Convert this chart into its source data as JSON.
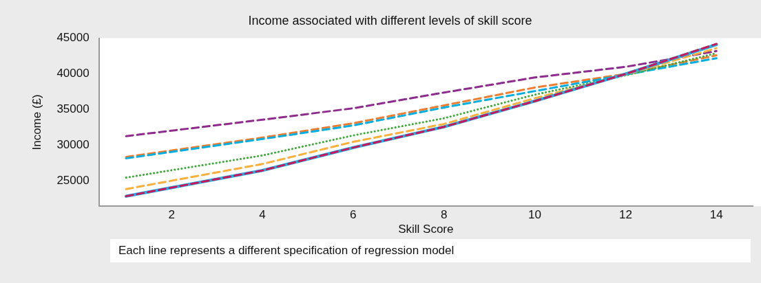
{
  "chart_data": {
    "type": "line",
    "title": "Income associated with different levels of skill score",
    "xlabel": "Skill Score",
    "ylabel": "Income (£)",
    "x": [
      1,
      4,
      6,
      8,
      10,
      12,
      14
    ],
    "series": [
      {
        "color": "#8e2c8e",
        "line_style": "dashed",
        "values": [
          31300,
          33600,
          35200,
          37400,
          39500,
          41000,
          43200
        ]
      },
      {
        "color": "#ed7d31",
        "line_style": "dashed",
        "values": [
          28400,
          31100,
          33100,
          35600,
          38100,
          40000,
          42600
        ]
      },
      {
        "color": "#00aee0",
        "line_style": "dashed",
        "values": [
          28200,
          30900,
          32800,
          35300,
          37600,
          39900,
          42200
        ]
      },
      {
        "color": "#3aaa35",
        "line_style": "dotted",
        "values": [
          25500,
          28600,
          31400,
          33800,
          37100,
          39800,
          42900
        ]
      },
      {
        "color": "#fbb03b",
        "line_style": "dashed",
        "values": [
          23900,
          27400,
          30500,
          33000,
          36600,
          39900,
          43600
        ]
      },
      {
        "color": "#1fb0e0",
        "line_style": "solid",
        "values": [
          22900,
          26500,
          29700,
          32600,
          36200,
          40000,
          44100
        ]
      },
      {
        "color": "#c8175f",
        "line_style": "dashed",
        "values": [
          22900,
          26500,
          29700,
          32600,
          36200,
          40000,
          44200
        ]
      }
    ],
    "xlim": [
      0.4,
      14.8
    ],
    "ylim": [
      21500,
      45000
    ],
    "xticks": [
      2,
      4,
      6,
      8,
      10,
      12,
      14
    ],
    "yticks": [
      25000,
      30000,
      35000,
      40000,
      45000
    ],
    "grid": false,
    "legend": false,
    "marker": "none",
    "annotations": [
      "Each line represents a different specification of regression model"
    ]
  }
}
